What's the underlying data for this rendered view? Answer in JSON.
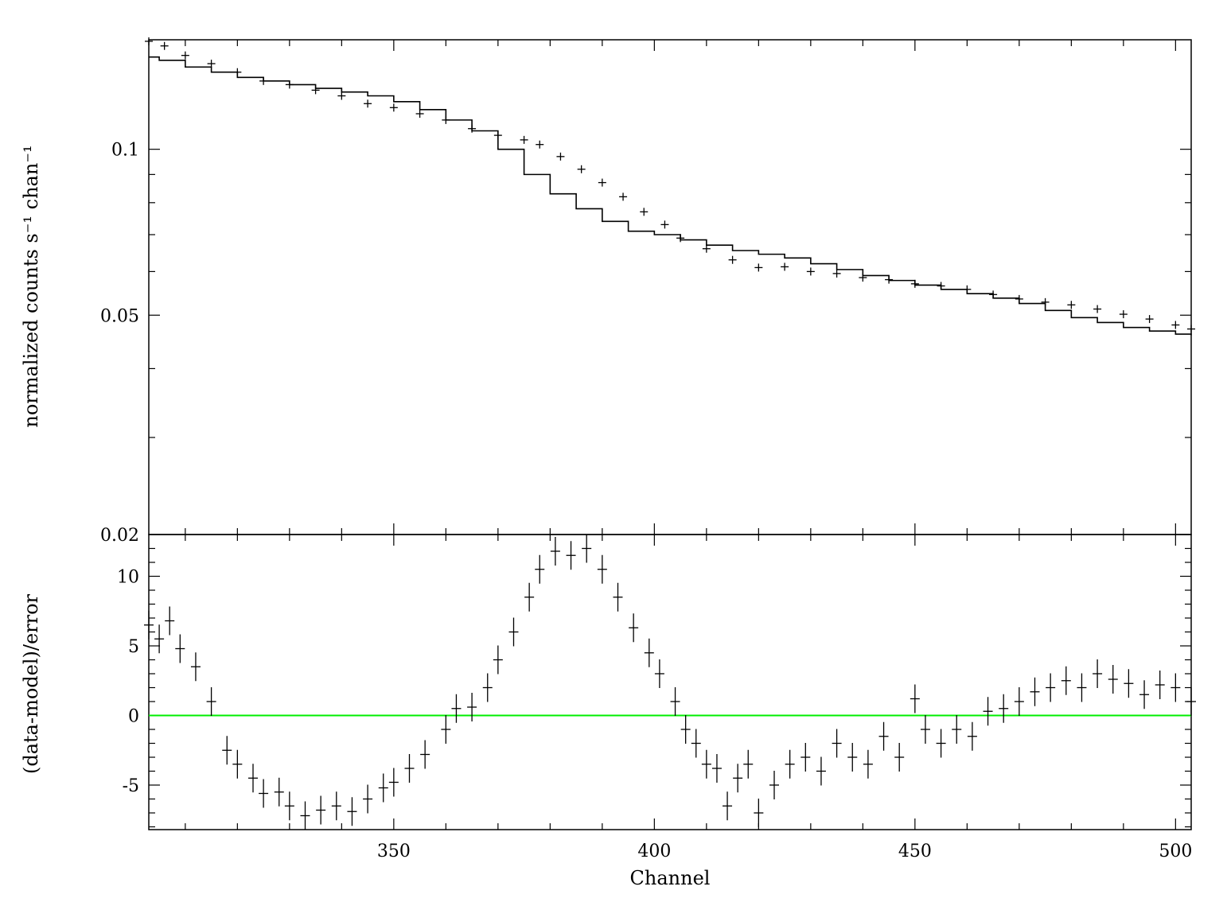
{
  "chart_data": [
    {
      "panel": "top",
      "type": "line",
      "y_scale": "log",
      "ylabel": "normalized counts s⁻¹ chan⁻¹",
      "xlim": [
        303,
        503
      ],
      "ylim": [
        0.02,
        0.158
      ],
      "yticks": [
        0.02,
        0.05,
        0.1
      ],
      "ytick_labels": [
        "0.02",
        "0.05",
        "0.1"
      ],
      "series": [
        {
          "kind": "model-step",
          "points": [
            [
              303,
              0.147
            ],
            [
              305,
              0.145
            ],
            [
              310,
              0.141
            ],
            [
              315,
              0.138
            ],
            [
              320,
              0.135
            ],
            [
              325,
              0.133
            ],
            [
              330,
              0.131
            ],
            [
              335,
              0.129
            ],
            [
              340,
              0.127
            ],
            [
              345,
              0.125
            ],
            [
              350,
              0.122
            ],
            [
              355,
              0.118
            ],
            [
              360,
              0.113
            ],
            [
              365,
              0.108
            ],
            [
              370,
              0.1
            ],
            [
              375,
              0.09
            ],
            [
              380,
              0.083
            ],
            [
              385,
              0.078
            ],
            [
              390,
              0.074
            ],
            [
              395,
              0.071
            ],
            [
              400,
              0.07
            ],
            [
              405,
              0.0685
            ],
            [
              410,
              0.067
            ],
            [
              415,
              0.0655
            ],
            [
              420,
              0.0645
            ],
            [
              425,
              0.0635
            ],
            [
              430,
              0.062
            ],
            [
              435,
              0.0605
            ],
            [
              440,
              0.059
            ],
            [
              445,
              0.0578
            ],
            [
              450,
              0.0567
            ],
            [
              455,
              0.0557
            ],
            [
              460,
              0.0547
            ],
            [
              465,
              0.0537
            ],
            [
              470,
              0.0525
            ],
            [
              475,
              0.051
            ],
            [
              480,
              0.0495
            ],
            [
              485,
              0.0485
            ],
            [
              490,
              0.0475
            ],
            [
              495,
              0.0468
            ],
            [
              500,
              0.0462
            ],
            [
              503,
              0.046
            ]
          ]
        },
        {
          "kind": "data-crosses",
          "points": [
            [
              303,
              0.157
            ],
            [
              306,
              0.154
            ],
            [
              310,
              0.148
            ],
            [
              315,
              0.143
            ],
            [
              320,
              0.138
            ],
            [
              325,
              0.133
            ],
            [
              330,
              0.131
            ],
            [
              335,
              0.128
            ],
            [
              340,
              0.125
            ],
            [
              345,
              0.121
            ],
            [
              350,
              0.119
            ],
            [
              355,
              0.116
            ],
            [
              360,
              0.113
            ],
            [
              365,
              0.109
            ],
            [
              370,
              0.106
            ],
            [
              375,
              0.104
            ],
            [
              378,
              0.102
            ],
            [
              382,
              0.097
            ],
            [
              386,
              0.092
            ],
            [
              390,
              0.087
            ],
            [
              394,
              0.082
            ],
            [
              398,
              0.077
            ],
            [
              402,
              0.073
            ],
            [
              405,
              0.069
            ],
            [
              410,
              0.066
            ],
            [
              415,
              0.063
            ],
            [
              420,
              0.061
            ],
            [
              425,
              0.0612
            ],
            [
              430,
              0.06
            ],
            [
              435,
              0.0595
            ],
            [
              440,
              0.0585
            ],
            [
              445,
              0.058
            ],
            [
              450,
              0.057
            ],
            [
              455,
              0.0565
            ],
            [
              460,
              0.0557
            ],
            [
              465,
              0.0545
            ],
            [
              470,
              0.0535
            ],
            [
              475,
              0.0528
            ],
            [
              480,
              0.0522
            ],
            [
              485,
              0.0513
            ],
            [
              490,
              0.0502
            ],
            [
              495,
              0.0492
            ],
            [
              500,
              0.048
            ],
            [
              503,
              0.0472
            ]
          ]
        }
      ]
    },
    {
      "panel": "bottom",
      "type": "scatter",
      "xlabel": "Channel",
      "ylabel": "(data-model)/error",
      "xlim": [
        303,
        503
      ],
      "ylim": [
        -8.2,
        13
      ],
      "xticks": [
        350,
        400,
        450,
        500
      ],
      "xtick_labels": [
        "350",
        "400",
        "450",
        "500"
      ],
      "yticks": [
        -5,
        0,
        5,
        10
      ],
      "ytick_labels": [
        "-5",
        "0",
        "5",
        "10"
      ],
      "zero_line_color": "#00ee00",
      "series": [
        {
          "kind": "residual-crosses",
          "points": [
            [
              303,
              6.5
            ],
            [
              305,
              5.5
            ],
            [
              307,
              6.8
            ],
            [
              309,
              4.8
            ],
            [
              312,
              3.5
            ],
            [
              315,
              1
            ],
            [
              318,
              -2.5
            ],
            [
              320,
              -3.5
            ],
            [
              323,
              -4.5
            ],
            [
              325,
              -5.6
            ],
            [
              328,
              -5.5
            ],
            [
              330,
              -6.5
            ],
            [
              333,
              -7.2
            ],
            [
              336,
              -6.8
            ],
            [
              339,
              -6.5
            ],
            [
              342,
              -6.9
            ],
            [
              345,
              -6
            ],
            [
              348,
              -5.2
            ],
            [
              350,
              -4.8
            ],
            [
              353,
              -3.8
            ],
            [
              356,
              -2.8
            ],
            [
              360,
              -1
            ],
            [
              362,
              0.5
            ],
            [
              365,
              0.6
            ],
            [
              368,
              2
            ],
            [
              370,
              4
            ],
            [
              373,
              6
            ],
            [
              376,
              8.5
            ],
            [
              378,
              10.5
            ],
            [
              381,
              11.8
            ],
            [
              384,
              11.5
            ],
            [
              387,
              12
            ],
            [
              390,
              10.5
            ],
            [
              393,
              8.5
            ],
            [
              396,
              6.3
            ],
            [
              399,
              4.5
            ],
            [
              401,
              3
            ],
            [
              404,
              1
            ],
            [
              406,
              -1
            ],
            [
              408,
              -2
            ],
            [
              410,
              -3.5
            ],
            [
              412,
              -3.8
            ],
            [
              414,
              -6.5
            ],
            [
              416,
              -4.5
            ],
            [
              418,
              -3.5
            ],
            [
              420,
              -7
            ],
            [
              423,
              -5
            ],
            [
              426,
              -3.5
            ],
            [
              429,
              -3
            ],
            [
              432,
              -4
            ],
            [
              435,
              -2
            ],
            [
              438,
              -3
            ],
            [
              441,
              -3.5
            ],
            [
              444,
              -1.5
            ],
            [
              447,
              -3
            ],
            [
              450,
              1.2
            ],
            [
              452,
              -1
            ],
            [
              455,
              -2
            ],
            [
              458,
              -1
            ],
            [
              461,
              -1.5
            ],
            [
              464,
              0.3
            ],
            [
              467,
              0.5
            ],
            [
              470,
              1
            ],
            [
              473,
              1.7
            ],
            [
              476,
              2
            ],
            [
              479,
              2.5
            ],
            [
              482,
              2
            ],
            [
              485,
              3
            ],
            [
              488,
              2.6
            ],
            [
              491,
              2.3
            ],
            [
              494,
              1.5
            ],
            [
              497,
              2.2
            ],
            [
              500,
              2
            ],
            [
              503,
              1
            ]
          ]
        }
      ]
    }
  ]
}
